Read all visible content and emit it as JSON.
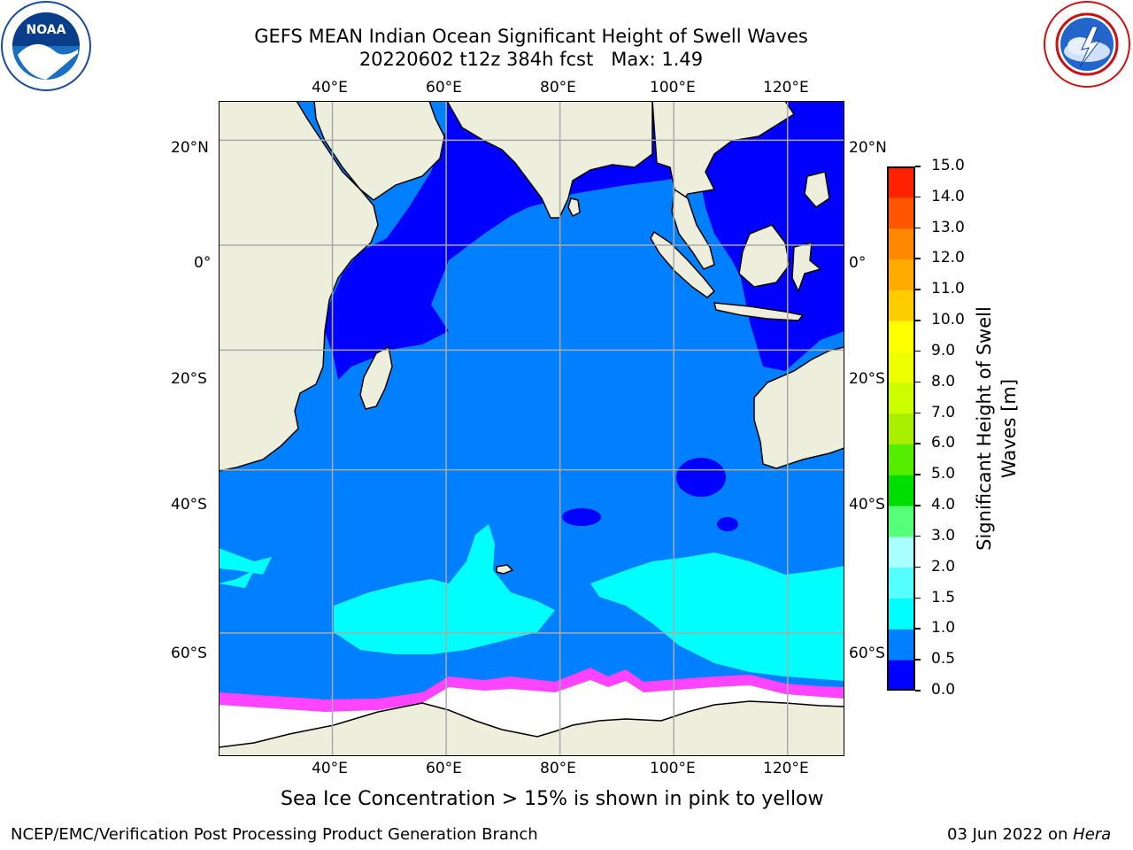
{
  "header": {
    "title": "GEFS MEAN Indian Ocean Significant Height of Swell Waves",
    "subtitle": "20220602 t12z 384h fcst   Max: 1.49"
  },
  "logos": {
    "left": {
      "name": "noaa-logo",
      "text": "NOAA",
      "ring_text": "NATIONAL OCEANIC AND ATMOSPHERIC ADMINISTRATION · U.S. DEPARTMENT OF COMMERCE"
    },
    "right": {
      "name": "nws-logo",
      "ring_text": "NATIONAL WEATHER SERVICE"
    }
  },
  "map": {
    "region": "Indian Ocean",
    "lon_ticks_top": [
      "40°E",
      "60°E",
      "80°E",
      "100°E",
      "120°E"
    ],
    "lon_ticks_bottom": [
      "40°E",
      "60°E",
      "80°E",
      "100°E",
      "120°E"
    ],
    "lat_ticks_left": [
      "20°N",
      "0°",
      "20°S",
      "40°S",
      "60°S"
    ],
    "lat_ticks_right": [
      "20°N",
      "0°",
      "20°S",
      "40°S",
      "60°S"
    ],
    "lon_values": [
      40,
      60,
      80,
      100,
      120
    ],
    "lat_values": [
      20,
      0,
      -20,
      -40,
      -60
    ],
    "extent": {
      "lon": [
        20,
        130
      ],
      "lat": [
        -70,
        27
      ]
    },
    "colors": {
      "land": "#eeeedd",
      "ocean_low": "#0000ff",
      "ocean_mid": "#0080ff",
      "ocean_cyan": "#00ffff",
      "ice_pink": "#ff44ff",
      "ice_orange": "#ffb030",
      "grid": "#aaaaaa"
    }
  },
  "colorbar": {
    "label": "Significant Height of Swell Waves [m]",
    "ticks": [
      "0.0",
      "0.5",
      "1.0",
      "1.5",
      "2.0",
      "3.0",
      "4.0",
      "5.0",
      "6.0",
      "7.0",
      "8.0",
      "9.0",
      "10.0",
      "11.0",
      "12.0",
      "13.0",
      "14.0",
      "15.0"
    ],
    "colors": [
      "#0000ff",
      "#0080ff",
      "#00ffff",
      "#55ffff",
      "#aaffff",
      "#55ff77",
      "#00dd00",
      "#55ee00",
      "#aaee00",
      "#ccff00",
      "#eeff00",
      "#ffff00",
      "#ffcc00",
      "#ffaa00",
      "#ff8800",
      "#ff5500",
      "#ff2200"
    ]
  },
  "footer": {
    "ice_note": "Sea Ice Concentration > 15% is shown in pink to yellow",
    "left": "NCEP/EMC/Verification Post Processing Product Generation Branch",
    "date": "03 Jun 2022 on ",
    "machine": "Hera"
  }
}
